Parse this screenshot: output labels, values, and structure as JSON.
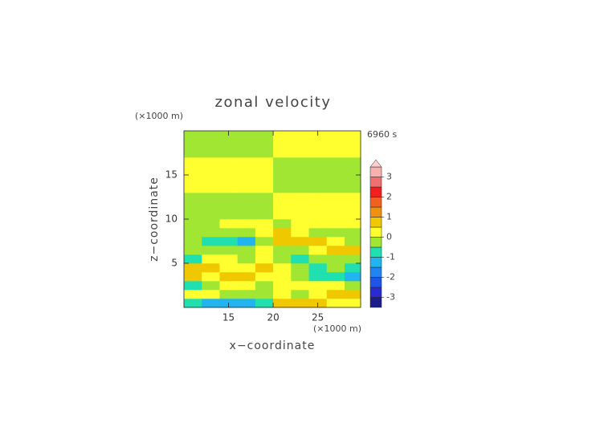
{
  "chart_data": {
    "type": "contour",
    "title": "zonal velocity",
    "y_unit_label": "(×1000 m)",
    "x_unit_label": "(×1000 m)",
    "time_label": "6960 s",
    "xlabel": "x−coordinate",
    "ylabel": "z−coordinate",
    "xlim": [
      10,
      29.8
    ],
    "ylim": [
      0,
      20
    ],
    "xticks": [
      15,
      20,
      25
    ],
    "yticks": [
      5,
      10,
      15
    ],
    "x": [
      11,
      13,
      15,
      17,
      19,
      21,
      23,
      25,
      27,
      29
    ],
    "y": [
      0.5,
      1.5,
      2.5,
      3.5,
      4.5,
      5.5,
      6.5,
      7.5,
      8.5,
      9.5,
      10.5,
      11.5,
      12.5,
      13.5,
      14.5,
      15.5,
      16.5,
      17.5,
      18.5,
      19.5
    ],
    "z": [
      [
        -0.7,
        -1.2,
        -1.2,
        -1.2,
        -0.7,
        0.6,
        0.6,
        0.6,
        0.2,
        0.2
      ],
      [
        0.2,
        0.2,
        -0.2,
        -0.2,
        -0.2,
        0.2,
        -0.2,
        0.2,
        0.6,
        0.6
      ],
      [
        -0.7,
        -0.2,
        0.2,
        0.2,
        -0.2,
        0.2,
        0.2,
        0.2,
        0.2,
        -0.2
      ],
      [
        0.6,
        0.2,
        0.6,
        0.6,
        0.2,
        0.2,
        -0.2,
        -0.7,
        -0.7,
        -1.2
      ],
      [
        0.6,
        0.6,
        0.2,
        0.2,
        0.6,
        0.2,
        -0.2,
        -0.7,
        -0.2,
        -0.7
      ],
      [
        -0.7,
        0.2,
        0.2,
        -0.2,
        0.2,
        -0.2,
        -0.7,
        -0.2,
        -0.2,
        -0.2
      ],
      [
        -0.2,
        -0.2,
        -0.2,
        -0.2,
        0.2,
        -0.2,
        -0.2,
        0.2,
        0.6,
        0.6
      ],
      [
        -0.2,
        -0.7,
        -0.7,
        -1.2,
        -0.2,
        0.6,
        0.7,
        0.6,
        0.2,
        -0.2
      ],
      [
        -0.2,
        -0.2,
        -0.2,
        -0.2,
        0.2,
        0.6,
        0.2,
        -0.2,
        -0.2,
        -0.2
      ],
      [
        -0.2,
        -0.2,
        0.2,
        0.2,
        0.2,
        -0.2,
        0.2,
        0.2,
        0.2,
        0.2
      ],
      [
        -0.2,
        -0.2,
        -0.2,
        -0.2,
        -0.2,
        0.2,
        0.2,
        0.2,
        0.2,
        0.2
      ],
      [
        -0.2,
        -0.2,
        -0.2,
        -0.2,
        -0.2,
        0.2,
        0.2,
        0.2,
        0.2,
        0.2
      ],
      [
        -0.2,
        -0.2,
        -0.2,
        -0.2,
        -0.2,
        0.2,
        0.2,
        0.2,
        0.2,
        0.2
      ],
      [
        0.2,
        0.2,
        0.2,
        0.2,
        0.2,
        -0.2,
        -0.2,
        -0.2,
        -0.2,
        -0.2
      ],
      [
        0.2,
        0.2,
        0.2,
        0.2,
        0.2,
        -0.2,
        -0.2,
        -0.2,
        -0.2,
        -0.2
      ],
      [
        0.2,
        0.2,
        0.2,
        0.2,
        0.2,
        -0.2,
        -0.2,
        -0.2,
        -0.2,
        -0.2
      ],
      [
        0.2,
        0.2,
        0.2,
        0.2,
        0.2,
        -0.2,
        -0.2,
        -0.2,
        -0.2,
        -0.2
      ],
      [
        -0.2,
        -0.2,
        -0.2,
        -0.2,
        -0.2,
        0.2,
        0.2,
        0.2,
        0.2,
        0.2
      ],
      [
        -0.2,
        -0.2,
        -0.2,
        -0.2,
        -0.2,
        0.2,
        0.2,
        0.2,
        0.2,
        0.2
      ],
      [
        -0.2,
        -0.2,
        -0.2,
        -0.2,
        -0.2,
        0.2,
        0.2,
        0.2,
        0.2,
        0.2
      ]
    ],
    "levels": [
      -3.5,
      -3,
      -2.5,
      -2,
      -1.5,
      -1,
      -0.5,
      0,
      0.5,
      1,
      1.5,
      2,
      2.5,
      3,
      3.5
    ],
    "colors": [
      "#1c1c8a",
      "#2a2ad2",
      "#1f55e6",
      "#2284f0",
      "#20b4f0",
      "#20e0b0",
      "#a0e632",
      "#ffff30",
      "#f0c800",
      "#f09010",
      "#f06020",
      "#f02020",
      "#f07070",
      "#f8b0b0"
    ],
    "extend_color": "#fcd0d0",
    "colorbar_ticks": [
      3,
      2,
      1,
      0,
      -1,
      -2,
      -3
    ]
  }
}
